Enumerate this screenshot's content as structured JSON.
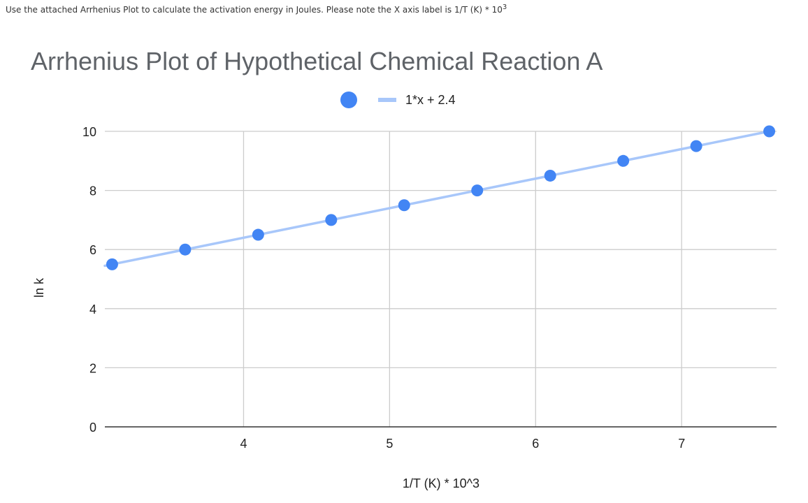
{
  "question": {
    "text": "Use the attached Arrhenius Plot to calculate the activation energy in Joules. Please note the X axis label is  1/T (K) * 10",
    "superscript": "3"
  },
  "colors": {
    "points": "#4285f4",
    "trendline": "#a8c7fa",
    "grid": "#cccccc",
    "axis": "#333333",
    "title": "#5f6368"
  },
  "chart_data": {
    "type": "scatter",
    "title": "Arrhenius Plot of Hypothetical Chemical Reaction A",
    "xlabel": "1/T (K) * 10^3",
    "ylabel": "ln k",
    "xlim": [
      3.05,
      7.65
    ],
    "ylim": [
      0,
      10
    ],
    "x_ticks": [
      4,
      5,
      6,
      7
    ],
    "y_ticks": [
      0,
      2,
      4,
      6,
      8,
      10
    ],
    "grid": true,
    "legend": {
      "placement": "top-center",
      "trendline_label": "1*x + 2.4"
    },
    "series": [
      {
        "x": [
          3.1,
          3.6,
          4.1,
          4.6,
          5.1,
          5.6,
          6.1,
          6.6,
          7.1,
          7.6
        ],
        "y": [
          5.5,
          6.0,
          6.5,
          7.0,
          7.5,
          8.0,
          8.5,
          9.0,
          9.5,
          10.0
        ]
      }
    ],
    "trendline": {
      "slope": 1,
      "intercept": 2.4
    }
  }
}
